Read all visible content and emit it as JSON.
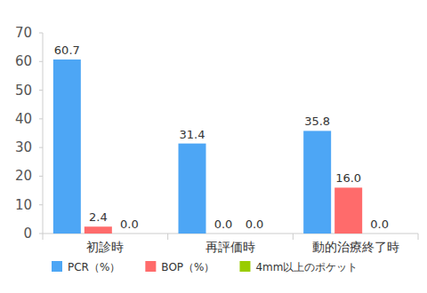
{
  "chart_data": {
    "type": "bar",
    "categories": [
      "初診時",
      "再評価時",
      "動的治療終了時"
    ],
    "series": [
      {
        "name": "PCR（%）",
        "color": "#4da6f5",
        "values": [
          60.7,
          31.4,
          35.8
        ],
        "value_labels": [
          "60.7",
          "31.4",
          "35.8"
        ]
      },
      {
        "name": "BOP（%）",
        "color": "#ff6b6b",
        "values": [
          2.4,
          0,
          16.0
        ],
        "value_labels": [
          "2.4",
          "0.0",
          "16.0"
        ]
      },
      {
        "name": "4mm以上のポケット",
        "color": "#99cc00",
        "values": [
          0,
          0,
          0
        ],
        "value_labels": [
          "0.0",
          "0.0",
          "0.0"
        ]
      }
    ],
    "ylim": [
      0,
      70
    ],
    "yticks": [
      0,
      10,
      20,
      30,
      40,
      50,
      60,
      70
    ],
    "grid": false,
    "legend": "bottom",
    "data_labels": true
  }
}
